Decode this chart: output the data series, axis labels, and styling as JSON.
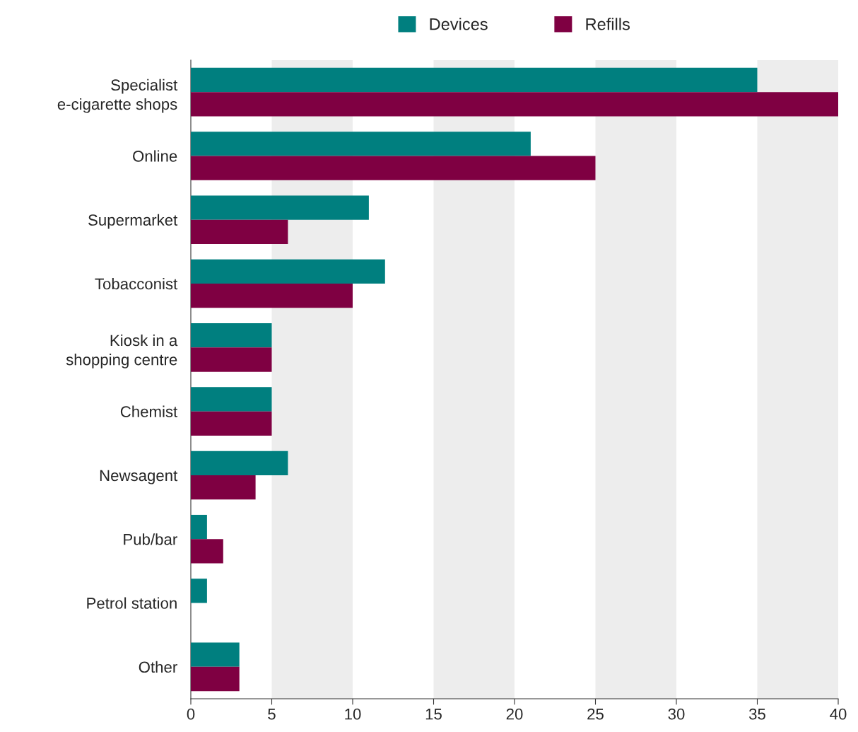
{
  "chart_data": {
    "type": "bar",
    "orientation": "horizontal",
    "categories": [
      "Specialist\ne-cigarette shops",
      "Online",
      "Supermarket",
      "Tobacconist",
      "Kiosk in a\nshopping centre",
      "Chemist",
      "Newsagent",
      "Pub/bar",
      "Petrol station",
      "Other"
    ],
    "series": [
      {
        "name": "Devices",
        "color": "#007f7f",
        "values": [
          35,
          21,
          11,
          12,
          5,
          5,
          6,
          1,
          1,
          3
        ]
      },
      {
        "name": "Refills",
        "color": "#7f0042",
        "values": [
          40,
          25,
          6,
          10,
          5,
          5,
          4,
          2,
          null,
          3
        ]
      }
    ],
    "xlim": [
      0,
      40
    ],
    "xticks": [
      0,
      5,
      10,
      15,
      20,
      25,
      30,
      35,
      40
    ],
    "bands": [
      {
        "axis": "x",
        "from": 5,
        "to": 10,
        "color": "#ededed"
      },
      {
        "axis": "x",
        "from": 15,
        "to": 20,
        "color": "#ededed"
      },
      {
        "axis": "x",
        "from": 25,
        "to": 30,
        "color": "#ededed"
      },
      {
        "axis": "x",
        "from": 35,
        "to": 40,
        "color": "#ededed"
      }
    ],
    "grid": false,
    "legend": "top"
  }
}
